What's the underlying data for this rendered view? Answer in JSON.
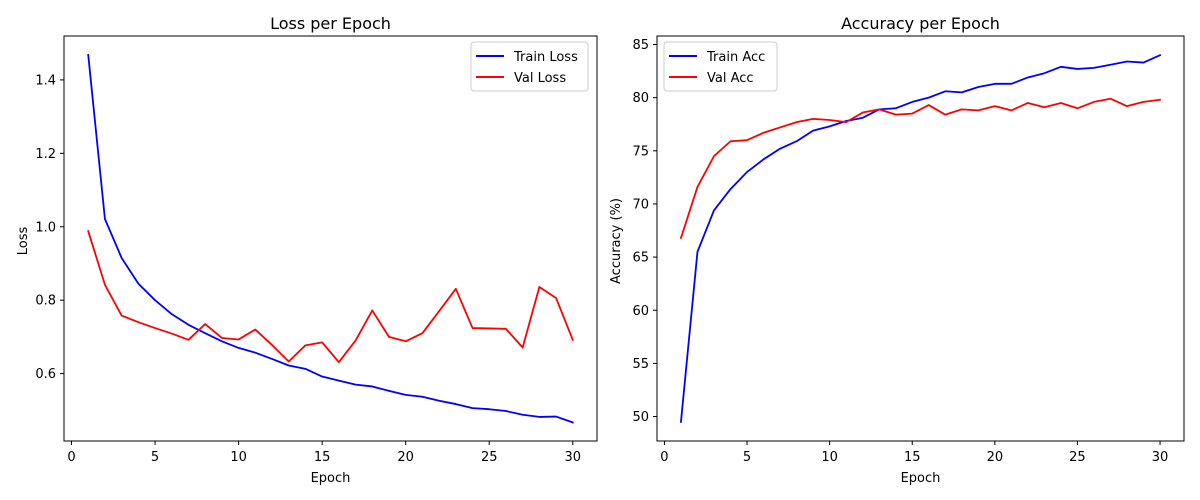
{
  "chart_data": [
    {
      "type": "line",
      "title": "Loss per Epoch",
      "xlabel": "Epoch",
      "ylabel": "Loss",
      "xlim": [
        -0.45,
        31.45
      ],
      "ylim": [
        0.4164,
        1.5196
      ],
      "xticks": [
        0,
        5,
        10,
        15,
        20,
        25,
        30
      ],
      "yticks": [
        0.6,
        0.8,
        1.0,
        1.2,
        1.4
      ],
      "ytick_labels": [
        "0.6",
        "0.8",
        "1.0",
        "1.2",
        "1.4"
      ],
      "legend_position": "upper right",
      "x": [
        1,
        2,
        3,
        4,
        5,
        6,
        7,
        8,
        9,
        10,
        11,
        12,
        13,
        14,
        15,
        16,
        17,
        18,
        19,
        20,
        21,
        22,
        23,
        24,
        25,
        26,
        27,
        28,
        29,
        30
      ],
      "series": [
        {
          "name": "Train Loss",
          "color": "#0000ff",
          "values": [
            1.468,
            1.021,
            0.915,
            0.845,
            0.8,
            0.762,
            0.733,
            0.71,
            0.688,
            0.67,
            0.657,
            0.64,
            0.622,
            0.613,
            0.592,
            0.581,
            0.57,
            0.565,
            0.553,
            0.542,
            0.537,
            0.526,
            0.517,
            0.506,
            0.503,
            0.498,
            0.488,
            0.482,
            0.483,
            0.467
          ]
        },
        {
          "name": "Val Loss",
          "color": "#ff0000",
          "values": [
            0.988,
            0.842,
            0.758,
            0.74,
            0.724,
            0.709,
            0.692,
            0.735,
            0.697,
            0.693,
            0.72,
            0.678,
            0.633,
            0.677,
            0.685,
            0.631,
            0.69,
            0.772,
            0.7,
            0.688,
            0.71,
            0.77,
            0.831,
            0.724,
            0.723,
            0.722,
            0.671,
            0.836,
            0.806,
            0.692
          ]
        }
      ]
    },
    {
      "type": "line",
      "title": "Accuracy per Epoch",
      "xlabel": "Epoch",
      "ylabel": "Accuracy (%)",
      "xlim": [
        -0.45,
        31.45
      ],
      "ylim": [
        47.7,
        85.8
      ],
      "xticks": [
        0,
        5,
        10,
        15,
        20,
        25,
        30
      ],
      "yticks": [
        50,
        55,
        60,
        65,
        70,
        75,
        80,
        85
      ],
      "ytick_labels": [
        "50",
        "55",
        "60",
        "65",
        "70",
        "75",
        "80",
        "85"
      ],
      "legend_position": "upper left",
      "x": [
        1,
        2,
        3,
        4,
        5,
        6,
        7,
        8,
        9,
        10,
        11,
        12,
        13,
        14,
        15,
        16,
        17,
        18,
        19,
        20,
        21,
        22,
        23,
        24,
        25,
        26,
        27,
        28,
        29,
        30
      ],
      "series": [
        {
          "name": "Train Acc",
          "color": "#0000ff",
          "values": [
            49.5,
            65.5,
            69.4,
            71.4,
            73.0,
            74.2,
            75.2,
            75.9,
            76.9,
            77.3,
            77.8,
            78.1,
            78.9,
            79.0,
            79.6,
            80.0,
            80.6,
            80.5,
            81.0,
            81.3,
            81.3,
            81.9,
            82.3,
            82.9,
            82.7,
            82.8,
            83.1,
            83.4,
            83.3,
            84.0
          ]
        },
        {
          "name": "Val Acc",
          "color": "#ff0000",
          "values": [
            66.8,
            71.6,
            74.5,
            75.9,
            76.0,
            76.7,
            77.2,
            77.7,
            78.0,
            77.9,
            77.7,
            78.6,
            78.9,
            78.4,
            78.5,
            79.3,
            78.4,
            78.9,
            78.8,
            79.2,
            78.8,
            79.5,
            79.1,
            79.5,
            79.0,
            79.6,
            79.9,
            79.2,
            79.6,
            79.8
          ]
        }
      ]
    }
  ]
}
